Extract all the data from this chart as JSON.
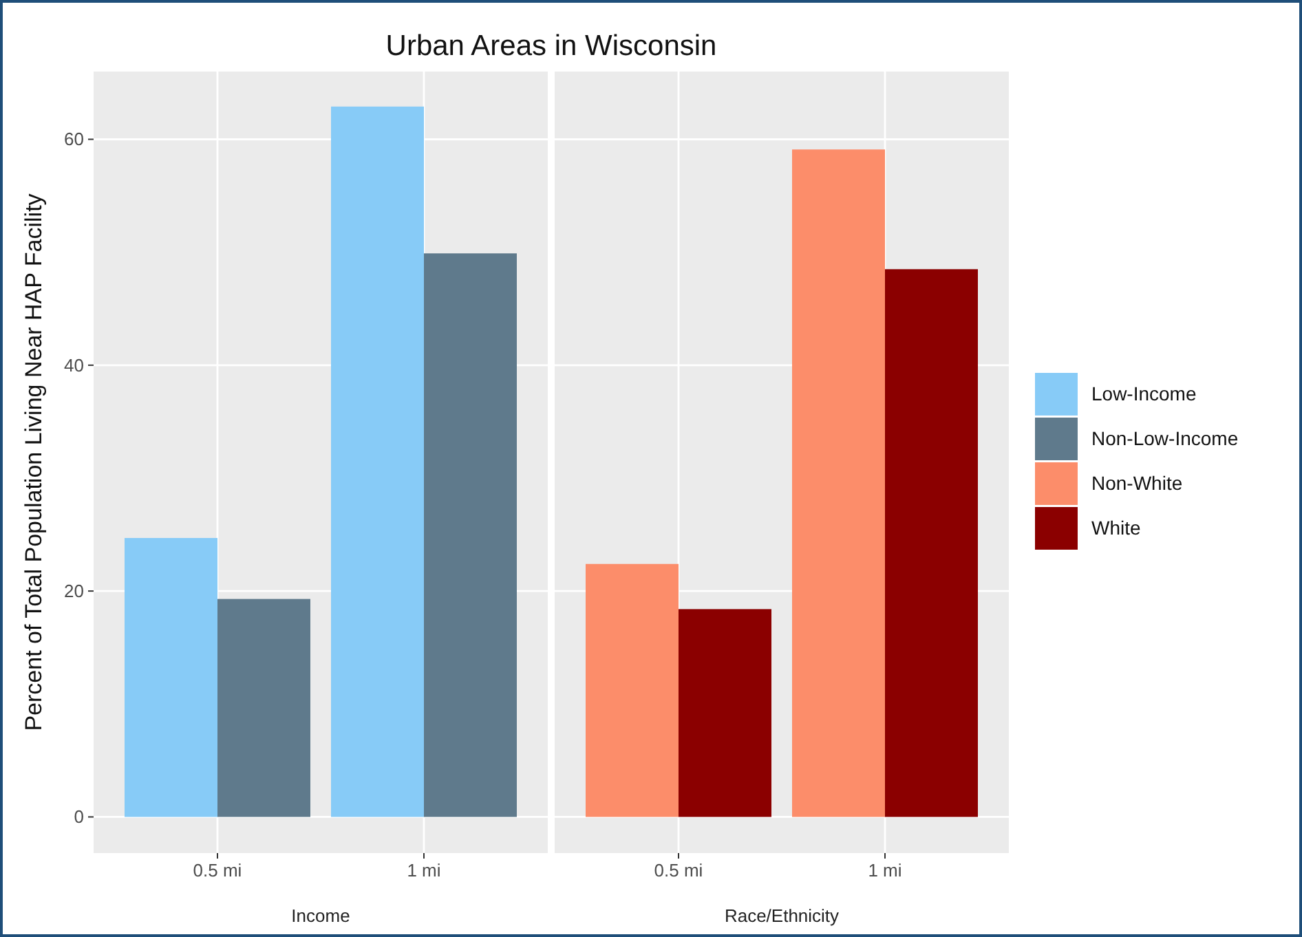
{
  "chart_data": [
    {
      "type": "bar",
      "title": "Urban Areas in Wisconsin",
      "xlabel": "Income",
      "ylabel": "Percent of Total Population Living Near HAP Facility",
      "categories": [
        "0.5 mi",
        "1 mi"
      ],
      "series": [
        {
          "name": "Low-Income",
          "color": "#87cbf7",
          "values": [
            24.7,
            62.9
          ]
        },
        {
          "name": "Non-Low-Income",
          "color": "#5f7a8c",
          "values": [
            19.3,
            49.9
          ]
        }
      ],
      "ylim": [
        -3.2,
        66
      ],
      "yticks": [
        0,
        20,
        40,
        60
      ],
      "grid": true,
      "legend": "right"
    },
    {
      "type": "bar",
      "xlabel": "Race/Ethnicity",
      "categories": [
        "0.5 mi",
        "1 mi"
      ],
      "series": [
        {
          "name": "Non-White",
          "color": "#fc8d6a",
          "values": [
            22.4,
            59.1
          ]
        },
        {
          "name": "White",
          "color": "#8b0000",
          "values": [
            18.4,
            48.5
          ]
        }
      ],
      "ylim": [
        -3.2,
        66
      ],
      "yticks": [
        0,
        20,
        40,
        60
      ],
      "grid": true,
      "legend": "right",
      "tick_labels": "x"
    }
  ]
}
